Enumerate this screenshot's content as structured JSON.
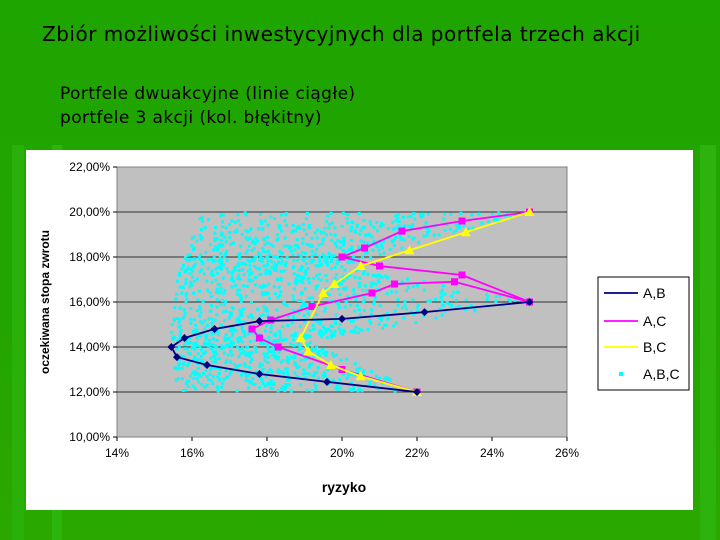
{
  "slide": {
    "title": "Zbiór możliwości inwestycyjnych dla portfela trzech akcji",
    "subtitle_1": "Portfele dwuakcyjne (linie ciągłe)",
    "subtitle_2": "portfele 3 akcji (kol. błękitny)"
  },
  "colors": {
    "background": "#22a600",
    "plot_area": "#c0c0c0",
    "AB": "#000080",
    "AC": "#ff00ff",
    "BC": "#ffff00",
    "ABC": "#00ffff"
  },
  "chart_data": {
    "type": "scatter",
    "xlabel": "ryzyko",
    "ylabel": "oczekiwana stopa zwrotu",
    "xlim": [
      0.14,
      0.26
    ],
    "ylim": [
      0.1,
      0.22
    ],
    "x_ticks": [
      "14%",
      "16%",
      "18%",
      "20%",
      "22%",
      "24%",
      "26%"
    ],
    "y_ticks": [
      "10,00%",
      "12,00%",
      "14,00%",
      "16,00%",
      "18,00%",
      "20,00%",
      "22,00%"
    ],
    "legend_position": "right",
    "grid": true,
    "series": [
      {
        "name": "A,B",
        "color": "#000080",
        "marker": "diamond",
        "line": true,
        "points": [
          [
            0.22,
            0.12
          ],
          [
            0.196,
            0.1245
          ],
          [
            0.178,
            0.128
          ],
          [
            0.164,
            0.132
          ],
          [
            0.156,
            0.1355
          ],
          [
            0.1545,
            0.14
          ],
          [
            0.158,
            0.144
          ],
          [
            0.166,
            0.148
          ],
          [
            0.178,
            0.1515
          ],
          [
            0.2,
            0.1525
          ],
          [
            0.222,
            0.1555
          ],
          [
            0.25,
            0.16
          ]
        ]
      },
      {
        "name": "A,C",
        "color": "#ff00ff",
        "marker": "square",
        "line": true,
        "points": [
          [
            0.22,
            0.12
          ],
          [
            0.2,
            0.13
          ],
          [
            0.183,
            0.14
          ],
          [
            0.178,
            0.144
          ],
          [
            0.176,
            0.148
          ],
          [
            0.181,
            0.152
          ],
          [
            0.192,
            0.158
          ],
          [
            0.208,
            0.164
          ],
          [
            0.214,
            0.168
          ],
          [
            0.23,
            0.169
          ],
          [
            0.25,
            0.16
          ],
          [
            0.232,
            0.172
          ],
          [
            0.21,
            0.176
          ],
          [
            0.2,
            0.18
          ],
          [
            0.206,
            0.184
          ],
          [
            0.216,
            0.1915
          ],
          [
            0.232,
            0.196
          ],
          [
            0.25,
            0.2
          ]
        ]
      },
      {
        "name": "B,C",
        "color": "#ffff00",
        "marker": "triangle",
        "line": true,
        "points": [
          [
            0.22,
            0.12
          ],
          [
            0.205,
            0.127
          ],
          [
            0.197,
            0.132
          ],
          [
            0.191,
            0.138
          ],
          [
            0.189,
            0.144
          ],
          [
            0.195,
            0.164
          ],
          [
            0.198,
            0.168
          ],
          [
            0.205,
            0.176
          ],
          [
            0.218,
            0.183
          ],
          [
            0.233,
            0.191
          ],
          [
            0.25,
            0.2
          ]
        ]
      }
    ]
  }
}
